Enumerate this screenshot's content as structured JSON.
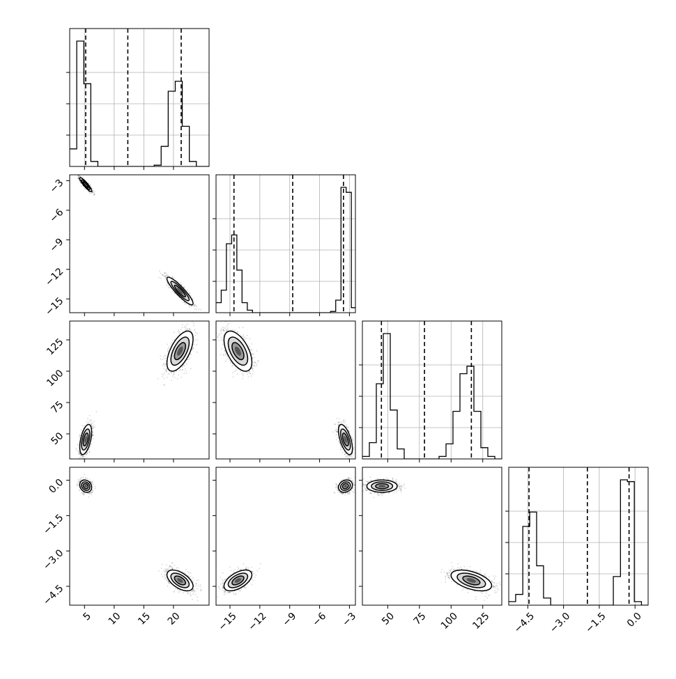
{
  "chart_data": {
    "type": "corner",
    "parameters": [
      {
        "range": [
          2.5,
          26
        ],
        "ticks": [
          5,
          10,
          15,
          20
        ],
        "tick_labels": [
          "5",
          "10",
          "15",
          "20"
        ],
        "quantiles": [
          5.2,
          12.3,
          21.3
        ],
        "hist_edges": [
          2.5,
          3.69,
          4.88,
          6.06,
          7.25,
          8.43,
          9.62,
          10.8,
          11.99,
          13.18,
          14.36,
          15.55,
          16.74,
          17.92,
          19.11,
          20.3,
          21.48,
          22.67,
          23.85,
          25.04,
          26.0
        ],
        "hist_values": [
          14,
          100,
          66,
          4,
          0,
          0,
          0,
          0,
          0,
          0,
          0,
          0,
          1,
          16,
          60,
          68,
          32,
          4,
          0,
          0
        ]
      },
      {
        "range": [
          -16.4,
          -2.4
        ],
        "ticks": [
          -15,
          -12,
          -9,
          -6,
          -3
        ],
        "tick_labels": [
          "−15",
          "−12",
          "−9",
          "−6",
          "−3"
        ],
        "quantiles": [
          -14.6,
          -8.7,
          -3.6
        ],
        "hist_edges": [
          -16.4,
          -15.88,
          -15.36,
          -14.83,
          -14.31,
          -13.79,
          -13.26,
          -12.74,
          -12.22,
          -11.7,
          -11.17,
          -10.65,
          -10.13,
          -9.6,
          -9.08,
          -8.56,
          -8.04,
          -7.51,
          -6.99,
          -6.47,
          -5.95,
          -5.42,
          -4.9,
          -4.38,
          -3.85,
          -3.33,
          -2.81,
          -2.4
        ],
        "hist_values": [
          8,
          18,
          55,
          62,
          34,
          8,
          2,
          0,
          0,
          0,
          0,
          0,
          0,
          0,
          0,
          0,
          0,
          0,
          0,
          0,
          0,
          0,
          1,
          10,
          100,
          96,
          4
        ]
      },
      {
        "range": [
          30,
          140
        ],
        "ticks": [
          50,
          75,
          100,
          125
        ],
        "tick_labels": [
          "50",
          "75",
          "100",
          "125"
        ],
        "quantiles": [
          45,
          79,
          116
        ],
        "hist_edges": [
          30,
          35.5,
          41,
          46.5,
          52,
          57.5,
          63,
          68.5,
          74,
          79.5,
          85,
          90.5,
          96,
          101.5,
          107,
          112.5,
          118,
          123.5,
          129,
          134.5,
          140
        ],
        "hist_values": [
          2,
          13,
          60,
          100,
          39,
          8,
          0,
          0,
          0,
          0,
          0,
          2,
          12,
          38,
          68,
          74,
          38,
          9,
          2,
          0
        ]
      },
      {
        "range": [
          -5.3,
          0.55
        ],
        "ticks": [
          -4.5,
          -3.0,
          -1.5,
          0.0
        ],
        "tick_labels": [
          "−4.5",
          "−3.0",
          "−1.5",
          "0.0"
        ],
        "quantiles": [
          -4.45,
          -2.0,
          -0.25
        ],
        "hist_edges": [
          -5.3,
          -5.01,
          -4.71,
          -4.42,
          -4.13,
          -3.84,
          -3.54,
          -3.25,
          -2.96,
          -2.66,
          -2.37,
          -2.08,
          -1.79,
          -1.49,
          -1.2,
          -0.91,
          -0.61,
          -0.32,
          -0.03,
          0.27,
          0.55
        ],
        "hist_values": [
          2,
          6,
          44,
          52,
          22,
          4,
          0,
          0,
          0,
          0,
          0,
          0,
          0,
          0,
          0,
          16,
          70,
          69,
          2,
          0
        ]
      }
    ],
    "modes": [
      {
        "means": [
          5.2,
          -3.4,
          45.5,
          -0.25
        ],
        "sds": [
          0.5,
          0.35,
          6.0,
          0.13
        ],
        "corr": {
          "0-1": -0.9,
          "0-2": 0.5,
          "0-3": -0.2,
          "1-2": -0.6,
          "1-3": 0.2,
          "2-3": 0.0
        }
      },
      {
        "means": [
          21.1,
          -14.2,
          116.0,
          -4.25
        ],
        "sds": [
          1.1,
          0.7,
          8.0,
          0.22
        ],
        "corr": {
          "0-1": -0.9,
          "0-2": 0.6,
          "0-3": -0.55,
          "1-2": -0.55,
          "1-3": 0.55,
          "2-3": -0.5
        }
      }
    ]
  }
}
